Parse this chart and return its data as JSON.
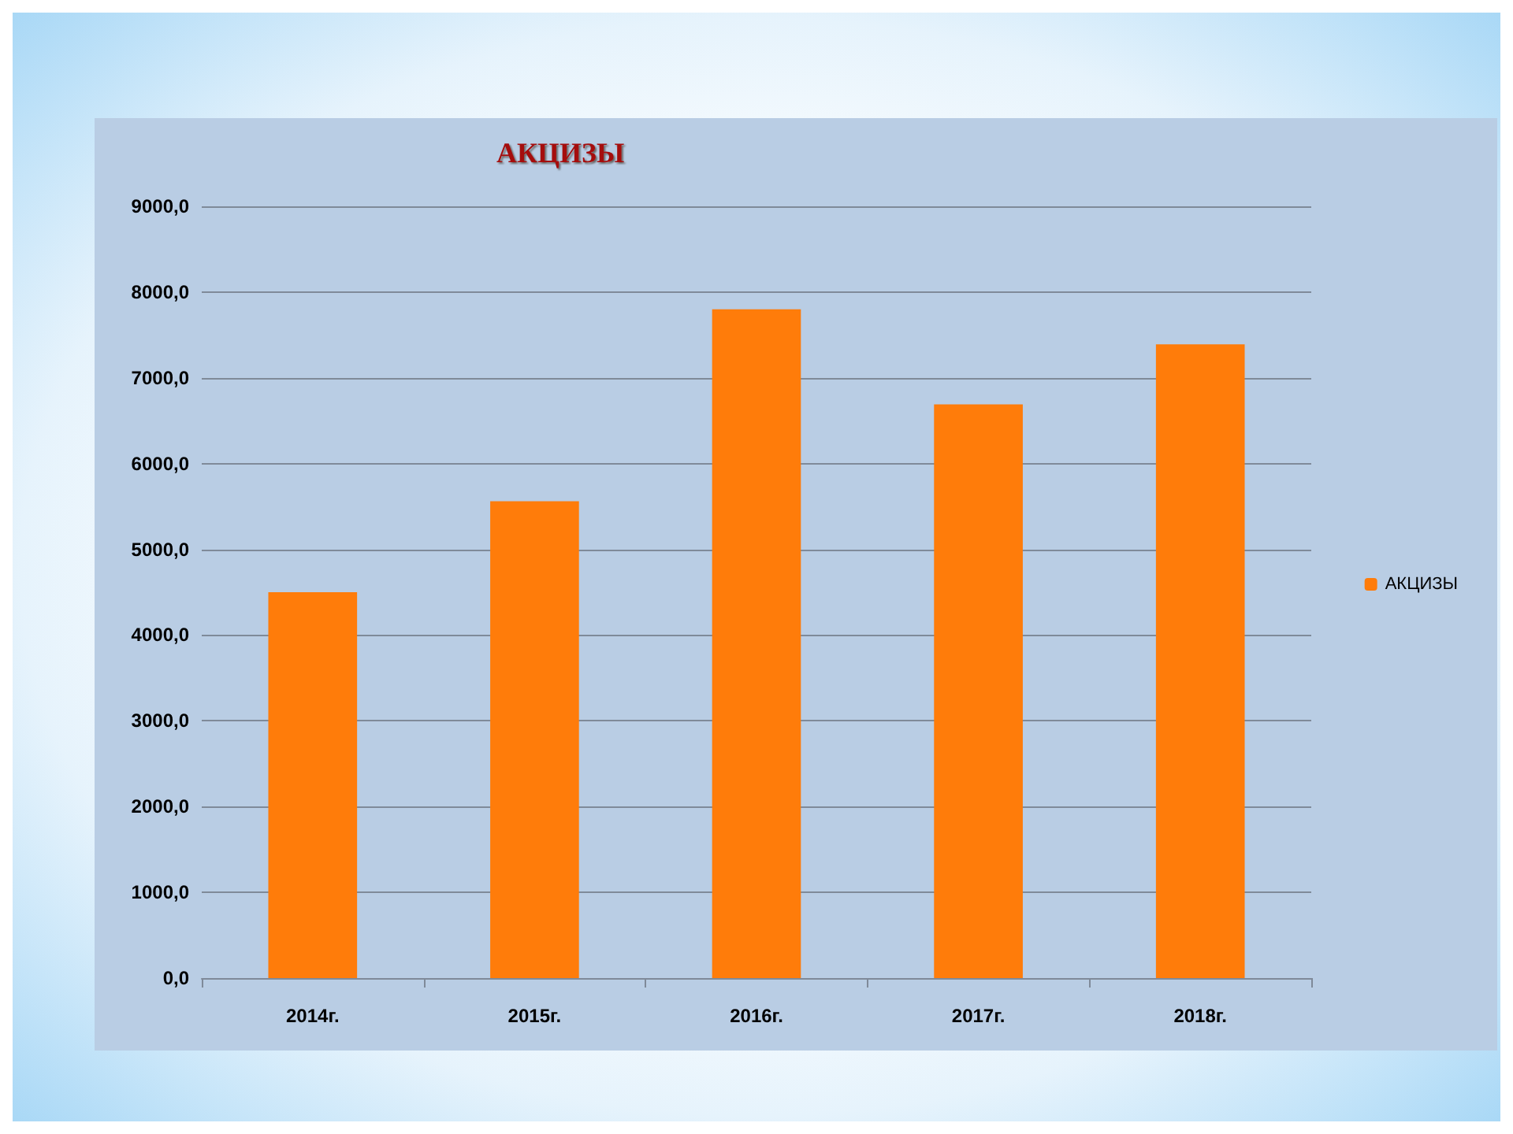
{
  "chart_data": {
    "type": "bar",
    "title": "АКЦИЗЫ",
    "categories": [
      "2014г.",
      "2015г.",
      "2016г.",
      "2017г.",
      "2018г."
    ],
    "series": [
      {
        "name": "АКЦИЗЫ",
        "color": "#ff7c0a",
        "values": [
          4500,
          5560,
          7800,
          6690,
          7390
        ]
      }
    ],
    "ylim": [
      0,
      9000
    ],
    "yticks": [
      {
        "value": 0,
        "label": "0,0"
      },
      {
        "value": 1000,
        "label": "1000,0"
      },
      {
        "value": 2000,
        "label": "2000,0"
      },
      {
        "value": 3000,
        "label": "3000,0"
      },
      {
        "value": 4000,
        "label": "4000,0"
      },
      {
        "value": 5000,
        "label": "5000,0"
      },
      {
        "value": 6000,
        "label": "6000,0"
      },
      {
        "value": 7000,
        "label": "7000,0"
      },
      {
        "value": 8000,
        "label": "8000,0"
      },
      {
        "value": 9000,
        "label": "9000,0"
      }
    ],
    "grid": "y",
    "legend": "right"
  }
}
